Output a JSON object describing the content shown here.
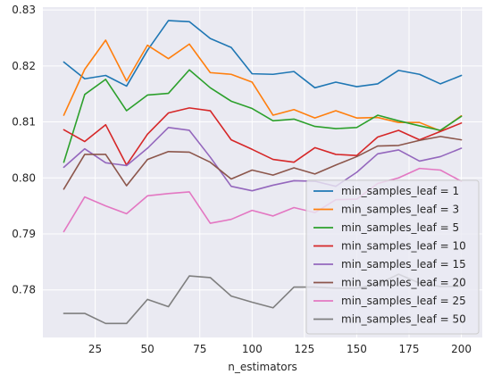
{
  "chart_data": {
    "type": "line",
    "xlabel": "n_estimators",
    "ylabel": "",
    "title": "",
    "xlim": [
      0,
      210
    ],
    "ylim": [
      0.7715,
      0.8305
    ],
    "xticks": [
      25,
      50,
      75,
      100,
      125,
      150,
      175,
      200
    ],
    "xtick_labels": [
      "25",
      "50",
      "75",
      "100",
      "125",
      "150",
      "175",
      "200"
    ],
    "yticks": [
      0.78,
      0.79,
      0.8,
      0.81,
      0.82,
      0.83
    ],
    "ytick_labels": [
      "0.78",
      "0.79",
      "0.80",
      "0.81",
      "0.82",
      "0.83"
    ],
    "grid": true,
    "legend_placement": "bottom-right",
    "background_color": "#eaeaf2",
    "x": [
      10,
      20,
      30,
      40,
      50,
      60,
      70,
      80,
      90,
      100,
      110,
      120,
      130,
      140,
      150,
      160,
      170,
      180,
      190,
      200
    ],
    "series": [
      {
        "name": "min_samples_leaf = 1",
        "color": "#1f77b4",
        "values": [
          0.8207,
          0.8177,
          0.8183,
          0.8164,
          0.8228,
          0.8281,
          0.8279,
          0.8249,
          0.8233,
          0.8186,
          0.8185,
          0.819,
          0.8161,
          0.8171,
          0.8163,
          0.8168,
          0.8192,
          0.8185,
          0.8168,
          0.8183
        ]
      },
      {
        "name": "min_samples_leaf = 3",
        "color": "#ff7f0e",
        "values": [
          0.8112,
          0.8194,
          0.8246,
          0.8173,
          0.8237,
          0.8213,
          0.8239,
          0.8188,
          0.8185,
          0.8171,
          0.8112,
          0.8122,
          0.8107,
          0.812,
          0.8107,
          0.8108,
          0.8099,
          0.8099,
          0.8084,
          0.8111
        ]
      },
      {
        "name": "min_samples_leaf = 5",
        "color": "#2ca02c",
        "values": [
          0.8028,
          0.8149,
          0.8176,
          0.812,
          0.8148,
          0.8151,
          0.8193,
          0.8161,
          0.8137,
          0.8124,
          0.8102,
          0.8105,
          0.8092,
          0.8088,
          0.809,
          0.8112,
          0.8102,
          0.8093,
          0.8085,
          0.811
        ]
      },
      {
        "name": "min_samples_leaf = 10",
        "color": "#d62728",
        "values": [
          0.8086,
          0.8065,
          0.8095,
          0.8023,
          0.8078,
          0.8116,
          0.8125,
          0.812,
          0.8068,
          0.8051,
          0.8033,
          0.8028,
          0.8054,
          0.8042,
          0.804,
          0.8073,
          0.8085,
          0.8068,
          0.8083,
          0.8098
        ]
      },
      {
        "name": "min_samples_leaf = 15",
        "color": "#9467bd",
        "values": [
          0.8019,
          0.8052,
          0.8027,
          0.8022,
          0.8053,
          0.809,
          0.8085,
          0.8037,
          0.7985,
          0.7977,
          0.7987,
          0.7995,
          0.7994,
          0.7985,
          0.801,
          0.8043,
          0.805,
          0.803,
          0.8038,
          0.8053
        ]
      },
      {
        "name": "min_samples_leaf = 20",
        "color": "#8c564b",
        "values": [
          0.798,
          0.8042,
          0.8042,
          0.7986,
          0.8033,
          0.8047,
          0.8046,
          0.8028,
          0.7998,
          0.8014,
          0.8005,
          0.8018,
          0.8007,
          0.8023,
          0.8038,
          0.8057,
          0.8058,
          0.8067,
          0.8074,
          0.8068
        ]
      },
      {
        "name": "min_samples_leaf = 25",
        "color": "#e377c2",
        "values": [
          0.7904,
          0.7966,
          0.795,
          0.7936,
          0.7968,
          0.7972,
          0.7975,
          0.7919,
          0.7926,
          0.7942,
          0.7932,
          0.7947,
          0.7938,
          0.7961,
          0.7962,
          0.799,
          0.8,
          0.8017,
          0.8014,
          0.7994
        ]
      },
      {
        "name": "min_samples_leaf = 50",
        "color": "#7f7f7f",
        "values": [
          0.7758,
          0.7758,
          0.774,
          0.774,
          0.7783,
          0.777,
          0.7825,
          0.7822,
          0.7789,
          0.7778,
          0.7768,
          0.7805,
          0.7805,
          0.7803,
          0.7803,
          0.781,
          0.7828,
          0.7812,
          0.7806,
          0.7806
        ]
      }
    ]
  }
}
